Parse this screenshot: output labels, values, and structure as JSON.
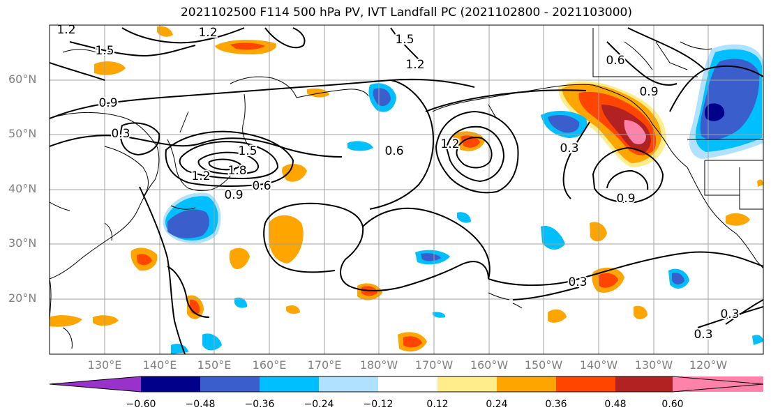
{
  "title": "2021102500 F114 500 hPa PV, IVT Landfall PC (2021102800 - 2021103000)",
  "lat_labels": [
    "60°N",
    "50°N",
    "40°N",
    "30°N",
    "20°N"
  ],
  "lon_labels": [
    "130°E",
    "140°E",
    "150°E",
    "160°E",
    "170°E",
    "180°W",
    "170°W",
    "160°W",
    "150°W",
    "140°W",
    "130°W",
    "120°W"
  ],
  "colorbar": {
    "colors": [
      "#9932cc",
      "#00008b",
      "#3a5fcd",
      "#00bfff",
      "#b0e2ff",
      "#ffffff",
      "#ffec8b",
      "#ffa500",
      "#ff4500",
      "#b22222",
      "#ff82ab"
    ],
    "tick_labels": [
      "−0.60",
      "−0.48",
      "−0.36",
      "−0.24",
      "−0.12",
      "0.12",
      "0.24",
      "0.36",
      "0.48",
      "0.60"
    ]
  },
  "contour_labels": [
    "1.2",
    "1.2",
    "1.5",
    "1.5",
    "1.2",
    "0.9",
    "0.3",
    "1.5",
    "1.8",
    "1.2",
    "0.9",
    "0.6",
    "0.6",
    "1.2",
    "0.6",
    "0.9",
    "0.3",
    "0.9",
    "0.3",
    "0.3",
    "0.3"
  ]
}
